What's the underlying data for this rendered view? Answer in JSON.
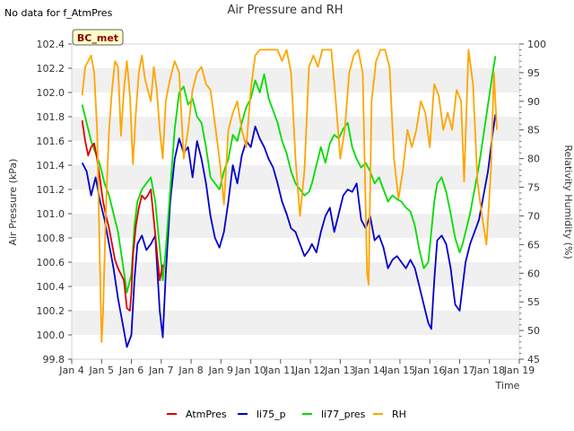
{
  "note": "No data for f_AtmPres",
  "site_label": "BC_met",
  "chart_data": {
    "type": "line",
    "title": "Air Pressure and RH",
    "xlabel": "Time",
    "ylabel": "Air Pressure (kPa)",
    "y2label": "Relativity Humidity (%)",
    "xlim": [
      4,
      19
    ],
    "ylim": [
      99.8,
      102.4
    ],
    "y2lim": [
      45,
      100
    ],
    "x_ticks": [
      4,
      5,
      6,
      7,
      8,
      9,
      10,
      11,
      12,
      13,
      14,
      15,
      16,
      17,
      18,
      19
    ],
    "x_tick_labels": [
      "Jan 4",
      "Jan 5",
      "Jan 6",
      "Jan 7",
      "Jan 8",
      "Jan 9",
      "Jan 10",
      "Jan 11",
      "Jan 12",
      "Jan 13",
      "Jan 14",
      "Jan 15",
      "Jan 16",
      "Jan 17",
      "Jan 18",
      "Jan 19"
    ],
    "y_ticks": [
      99.8,
      100.0,
      100.2,
      100.4,
      100.6,
      100.8,
      101.0,
      101.2,
      101.4,
      101.6,
      101.8,
      102.0,
      102.2,
      102.4
    ],
    "y_tick_labels": [
      "99.8",
      "100.0",
      "100.2",
      "100.4",
      "100.6",
      "100.8",
      "101.0",
      "101.2",
      "101.4",
      "101.6",
      "101.8",
      "102.0",
      "102.2",
      "102.4"
    ],
    "y2_ticks": [
      45,
      50,
      55,
      60,
      65,
      70,
      75,
      80,
      85,
      90,
      95,
      100
    ],
    "y2_tick_labels": [
      "45",
      "50",
      "55",
      "60",
      "65",
      "70",
      "75",
      "80",
      "85",
      "90",
      "95",
      "100"
    ],
    "grid": "horizontal bands",
    "legend_position": "bottom-center",
    "series": [
      {
        "name": "AtmPres",
        "color": "#dd0000",
        "axis": "left",
        "x": [
          4.35,
          4.45,
          4.55,
          4.65,
          4.75,
          4.85,
          4.95,
          5.05,
          5.15,
          5.25,
          5.35,
          5.45,
          5.55,
          5.65,
          5.75,
          5.85,
          5.95,
          6.0,
          6.05,
          6.15,
          6.25,
          6.35,
          6.45,
          6.55,
          6.65,
          6.75,
          6.85,
          6.95,
          7.05
        ],
        "y": [
          101.77,
          101.6,
          101.48,
          101.55,
          101.58,
          101.45,
          101.28,
          101.1,
          100.98,
          100.88,
          100.75,
          100.62,
          100.55,
          100.5,
          100.45,
          100.22,
          100.2,
          100.35,
          100.65,
          100.9,
          101.05,
          101.15,
          101.12,
          101.15,
          101.2,
          100.95,
          100.7,
          100.45,
          100.58
        ]
      },
      {
        "name": "li75_p",
        "color": "#0000cc",
        "axis": "left",
        "x": [
          4.35,
          4.5,
          4.65,
          4.8,
          4.95,
          5.1,
          5.25,
          5.4,
          5.55,
          5.7,
          5.85,
          6.0,
          6.1,
          6.2,
          6.35,
          6.5,
          6.65,
          6.8,
          6.95,
          7.05,
          7.15,
          7.3,
          7.45,
          7.6,
          7.75,
          7.9,
          8.05,
          8.2,
          8.35,
          8.5,
          8.65,
          8.8,
          8.95,
          9.1,
          9.25,
          9.4,
          9.55,
          9.7,
          9.85,
          10.0,
          10.15,
          10.3,
          10.45,
          10.6,
          10.75,
          10.9,
          11.05,
          11.2,
          11.35,
          11.5,
          11.65,
          11.8,
          11.95,
          12.05,
          12.2,
          12.35,
          12.5,
          12.65,
          12.8,
          12.95,
          13.1,
          13.25,
          13.4,
          13.55,
          13.7,
          13.85,
          14.0,
          14.15,
          14.3,
          14.45,
          14.6,
          14.75,
          14.9,
          15.05,
          15.2,
          15.35,
          15.5,
          15.65,
          15.8,
          15.95,
          16.05,
          16.15,
          16.25,
          16.4,
          16.55,
          16.7,
          16.85,
          17.0,
          17.1,
          17.2,
          17.35,
          17.5,
          17.65,
          17.8,
          17.95,
          18.1,
          18.2
        ],
        "y": [
          101.42,
          101.35,
          101.15,
          101.3,
          101.1,
          100.95,
          100.75,
          100.55,
          100.3,
          100.1,
          99.9,
          100.0,
          100.45,
          100.75,
          100.82,
          100.7,
          100.75,
          100.82,
          100.2,
          99.98,
          100.5,
          101.1,
          101.45,
          101.62,
          101.5,
          101.55,
          101.3,
          101.6,
          101.45,
          101.25,
          100.98,
          100.8,
          100.72,
          100.85,
          101.1,
          101.4,
          101.25,
          101.48,
          101.6,
          101.55,
          101.72,
          101.62,
          101.55,
          101.45,
          101.38,
          101.25,
          101.1,
          101.0,
          100.88,
          100.85,
          100.75,
          100.65,
          100.7,
          100.75,
          100.68,
          100.85,
          100.98,
          101.05,
          100.85,
          101.0,
          101.15,
          101.2,
          101.18,
          101.25,
          100.95,
          100.88,
          100.98,
          100.78,
          100.82,
          100.72,
          100.55,
          100.62,
          100.65,
          100.6,
          100.55,
          100.62,
          100.55,
          100.4,
          100.25,
          100.1,
          100.05,
          100.45,
          100.78,
          100.82,
          100.75,
          100.55,
          100.25,
          100.2,
          100.4,
          100.6,
          100.75,
          100.85,
          100.95,
          101.15,
          101.35,
          101.65,
          101.82
        ]
      },
      {
        "name": "li77_pres",
        "color": "#00dd00",
        "axis": "left",
        "x": [
          4.35,
          4.5,
          4.65,
          4.8,
          4.95,
          5.1,
          5.25,
          5.4,
          5.55,
          5.7,
          5.85,
          6.0,
          6.1,
          6.2,
          6.35,
          6.5,
          6.65,
          6.8,
          6.95,
          7.05,
          7.15,
          7.3,
          7.45,
          7.6,
          7.75,
          7.9,
          8.05,
          8.2,
          8.35,
          8.5,
          8.65,
          8.8,
          8.95,
          9.1,
          9.25,
          9.4,
          9.55,
          9.7,
          9.85,
          10.0,
          10.15,
          10.3,
          10.45,
          10.6,
          10.75,
          10.9,
          11.05,
          11.2,
          11.35,
          11.5,
          11.65,
          11.8,
          11.95,
          12.05,
          12.2,
          12.35,
          12.5,
          12.65,
          12.8,
          12.95,
          13.1,
          13.25,
          13.4,
          13.55,
          13.7,
          13.85,
          14.0,
          14.15,
          14.3,
          14.45,
          14.6,
          14.75,
          14.9,
          15.05,
          15.2,
          15.35,
          15.5,
          15.65,
          15.8,
          15.95,
          16.05,
          16.15,
          16.25,
          16.4,
          16.55,
          16.7,
          16.85,
          17.0,
          17.1,
          17.2,
          17.35,
          17.5,
          17.65,
          17.8,
          17.95,
          18.1,
          18.2
        ],
        "y": [
          101.9,
          101.75,
          101.6,
          101.5,
          101.4,
          101.25,
          101.15,
          101.0,
          100.85,
          100.6,
          100.35,
          100.5,
          100.9,
          101.1,
          101.2,
          101.25,
          101.3,
          101.1,
          100.72,
          100.45,
          100.7,
          101.2,
          101.7,
          102.0,
          102.05,
          101.9,
          101.95,
          101.8,
          101.75,
          101.55,
          101.3,
          101.25,
          101.2,
          101.35,
          101.45,
          101.65,
          101.6,
          101.75,
          101.88,
          101.95,
          102.1,
          102.0,
          102.15,
          101.95,
          101.85,
          101.75,
          101.6,
          101.5,
          101.35,
          101.25,
          101.2,
          101.15,
          101.18,
          101.25,
          101.4,
          101.55,
          101.42,
          101.58,
          101.65,
          101.62,
          101.7,
          101.75,
          101.55,
          101.45,
          101.38,
          101.42,
          101.35,
          101.25,
          101.3,
          101.2,
          101.1,
          101.15,
          101.12,
          101.1,
          101.05,
          101.02,
          100.9,
          100.7,
          100.55,
          100.6,
          100.85,
          101.1,
          101.25,
          101.3,
          101.18,
          101.0,
          100.8,
          100.68,
          100.75,
          100.85,
          101.0,
          101.2,
          101.4,
          101.65,
          101.9,
          102.15,
          102.3
        ]
      },
      {
        "name": "RH",
        "color": "#ffa500",
        "axis": "right",
        "x": [
          4.35,
          4.45,
          4.55,
          4.65,
          4.75,
          4.85,
          4.95,
          5.0,
          5.05,
          5.15,
          5.25,
          5.35,
          5.45,
          5.55,
          5.65,
          5.75,
          5.85,
          5.95,
          6.05,
          6.15,
          6.25,
          6.35,
          6.45,
          6.55,
          6.65,
          6.75,
          6.85,
          6.95,
          7.05,
          7.15,
          7.3,
          7.45,
          7.6,
          7.75,
          7.9,
          8.05,
          8.2,
          8.35,
          8.5,
          8.65,
          8.8,
          8.95,
          9.1,
          9.25,
          9.4,
          9.55,
          9.7,
          9.85,
          10.0,
          10.15,
          10.3,
          10.45,
          10.6,
          10.75,
          10.9,
          11.05,
          11.2,
          11.35,
          11.5,
          11.65,
          11.8,
          11.95,
          12.1,
          12.25,
          12.4,
          12.55,
          12.7,
          12.85,
          13.0,
          13.15,
          13.3,
          13.45,
          13.6,
          13.75,
          13.9,
          13.95,
          14.05,
          14.2,
          14.35,
          14.5,
          14.65,
          14.8,
          14.95,
          15.1,
          15.25,
          15.4,
          15.55,
          15.7,
          15.85,
          16.0,
          16.15,
          16.3,
          16.45,
          16.6,
          16.75,
          16.9,
          17.05,
          17.15,
          17.3,
          17.45,
          17.6,
          17.75,
          17.9,
          18.05,
          18.15,
          18.25
        ],
        "y": [
          91,
          96,
          97,
          98,
          95,
          85,
          60,
          48,
          53,
          72,
          85,
          92,
          97,
          96,
          84,
          92,
          97,
          91,
          79,
          88,
          95,
          98,
          94,
          92,
          90,
          96,
          92,
          85,
          80,
          90,
          94,
          97,
          95,
          80,
          85,
          92,
          95,
          96,
          93,
          92,
          86,
          80,
          72,
          85,
          88,
          90,
          85,
          82,
          92,
          98,
          99,
          99,
          99,
          99,
          99,
          97,
          99,
          95,
          80,
          70,
          78,
          96,
          98,
          96,
          99,
          99,
          99,
          90,
          80,
          85,
          95,
          98,
          99,
          95,
          60,
          58,
          90,
          97,
          99,
          99,
          96,
          80,
          73,
          78,
          85,
          82,
          85,
          90,
          88,
          82,
          93,
          91,
          85,
          88,
          85,
          92,
          90,
          76,
          99,
          93,
          76,
          70,
          65,
          78,
          95,
          85
        ]
      }
    ]
  }
}
